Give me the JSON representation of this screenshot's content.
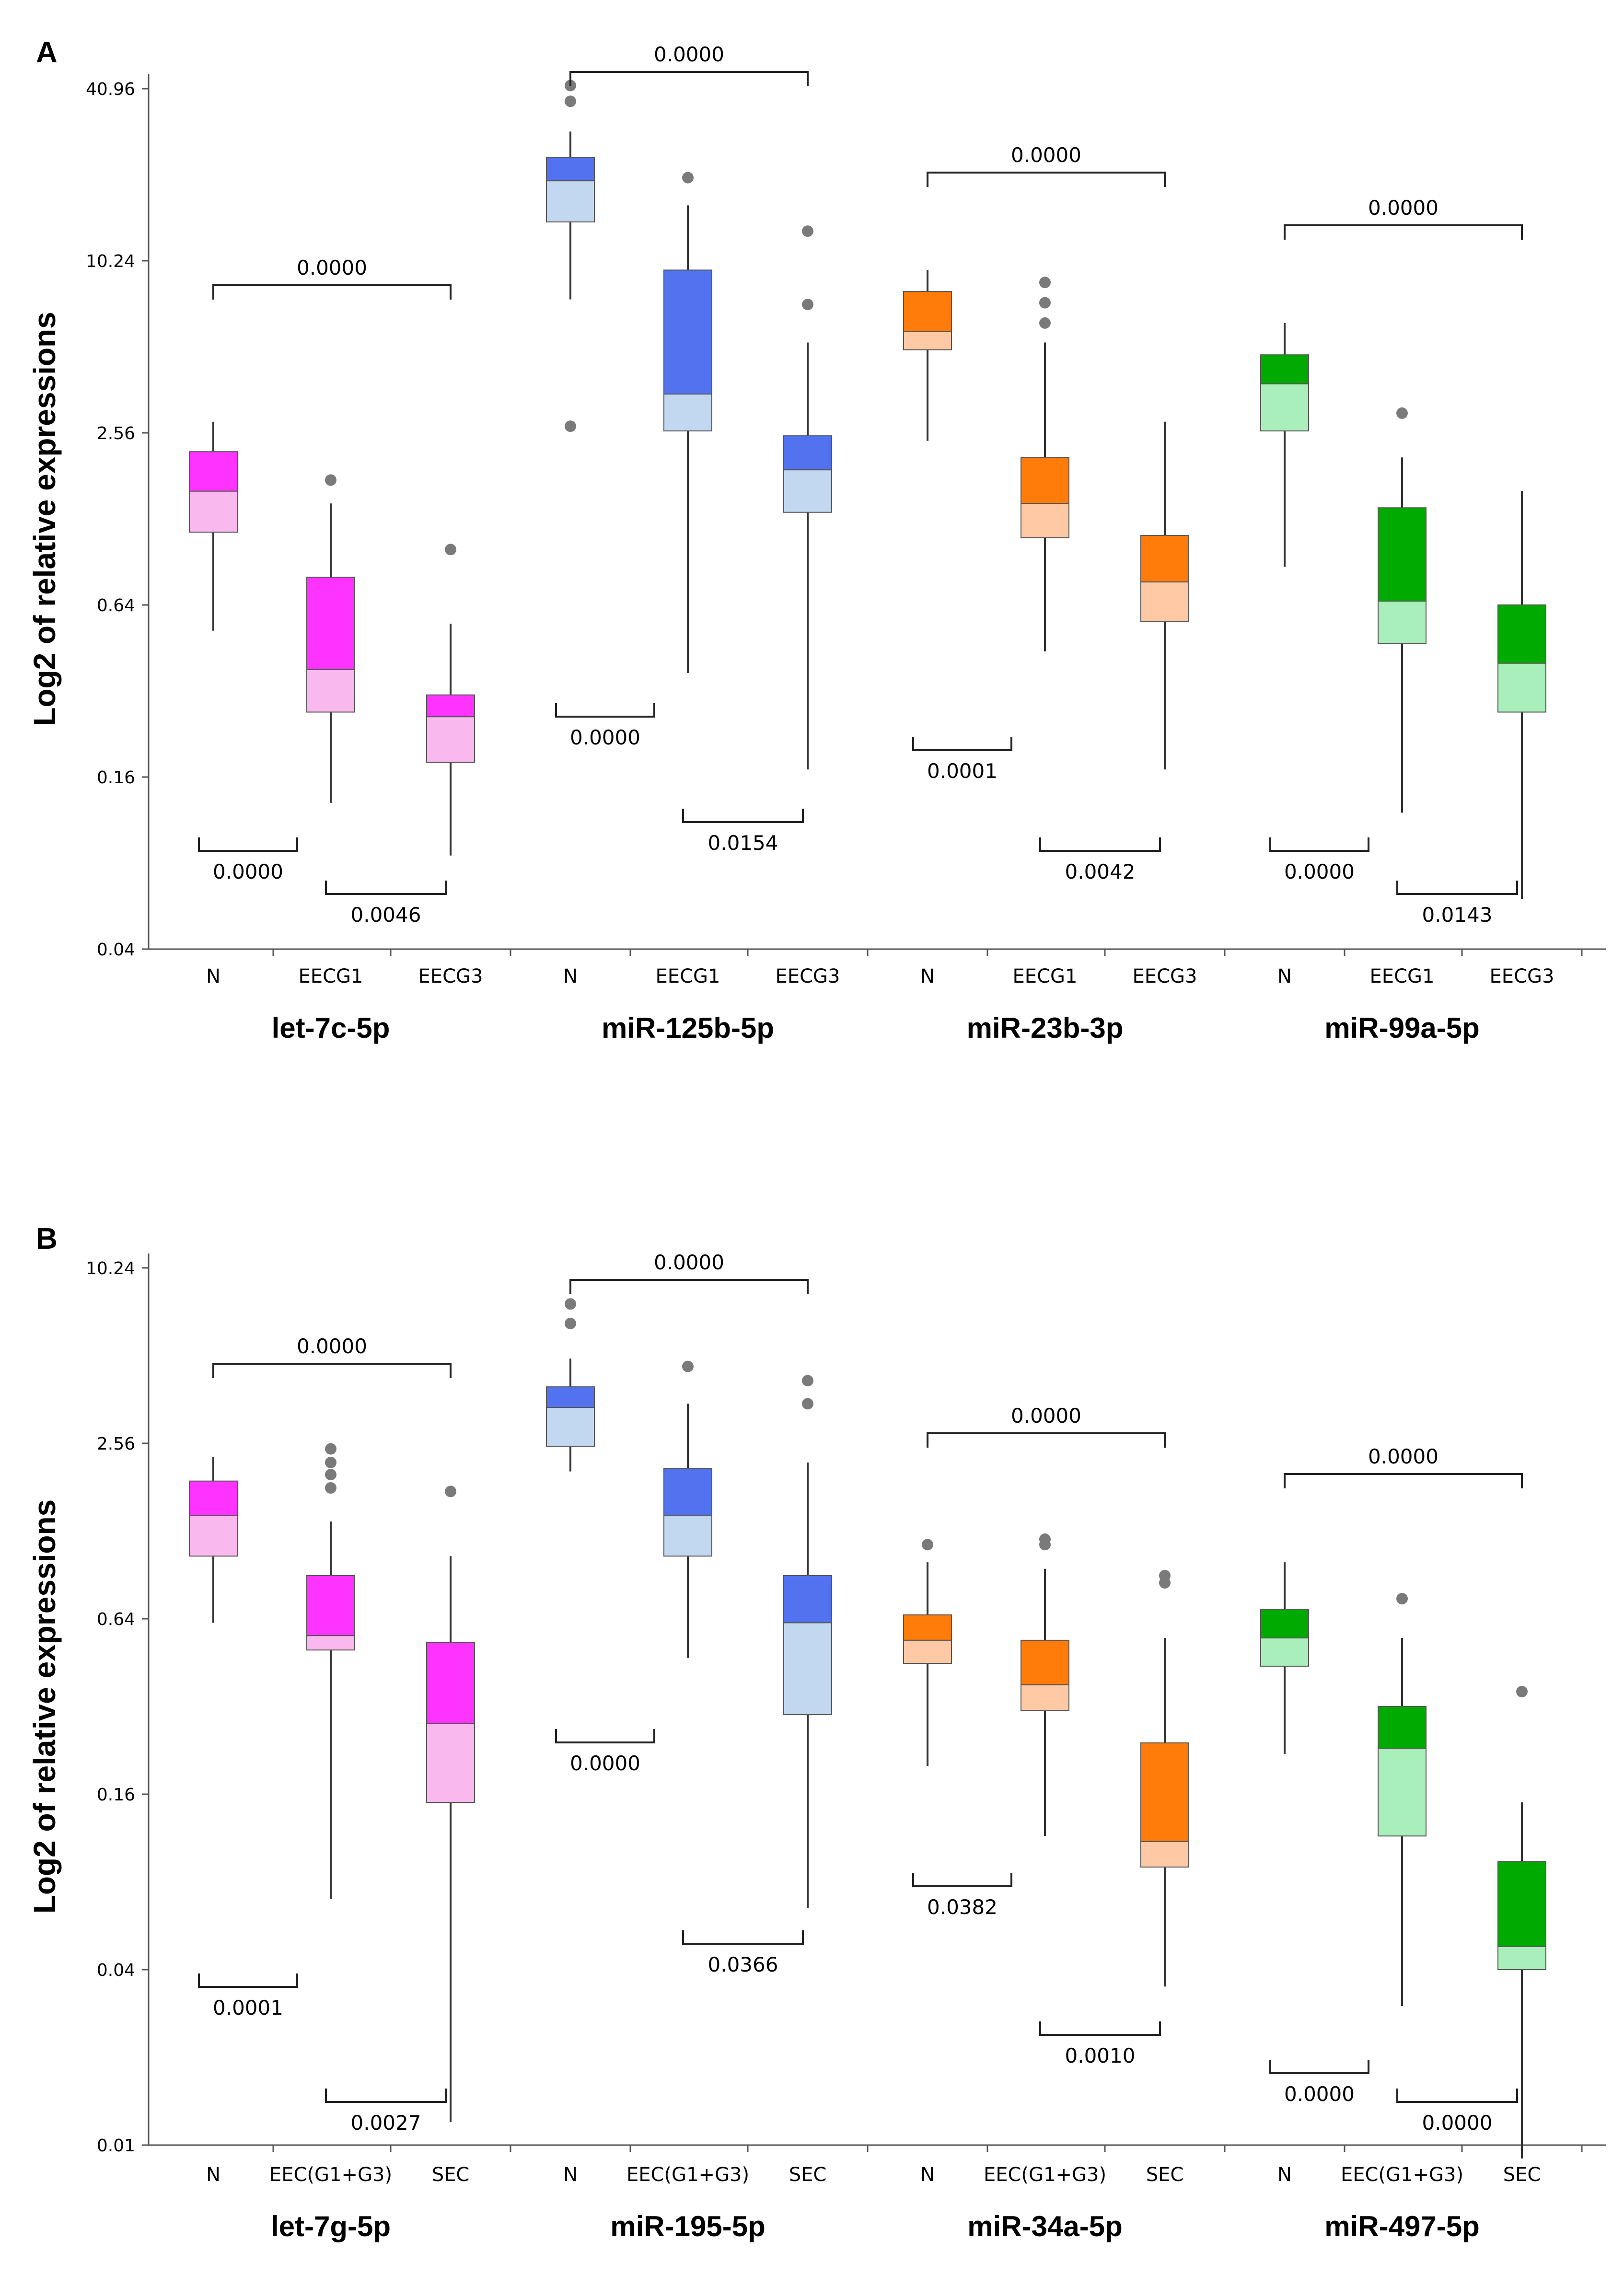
{
  "figure": {
    "panel_labels": [
      "A",
      "B"
    ]
  },
  "chart_data": [
    {
      "type": "box",
      "panel": "A",
      "ylabel": "Log2 of relative expressions",
      "yscale": "log2",
      "ylim": [
        0.04,
        40.96
      ],
      "yticks": [
        0.04,
        0.16,
        0.64,
        2.56,
        10.24,
        40.96
      ],
      "ytick_labels": [
        "0.04",
        "0.16",
        "0.64",
        "2.56",
        "10.24",
        "40.96"
      ],
      "groups": [
        {
          "name": "let-7c-5p",
          "color": "#ff33ff",
          "light": "#f9b9ee",
          "boxes": [
            {
              "category": "N",
              "q1": 1.15,
              "median": 1.6,
              "q3": 2.2,
              "whisker_low": 0.52,
              "whisker_high": 2.8,
              "outliers": []
            },
            {
              "category": "EECG1",
              "q1": 0.27,
              "median": 0.38,
              "q3": 0.8,
              "whisker_low": 0.13,
              "whisker_high": 1.45,
              "outliers": [
                1.75
              ]
            },
            {
              "category": "EECG3",
              "q1": 0.18,
              "median": 0.26,
              "q3": 0.31,
              "whisker_low": 0.085,
              "whisker_high": 0.55,
              "outliers": [
                1.0
              ]
            }
          ],
          "bracket_top": "0.0000",
          "bracket_low_1": "0.0000",
          "bracket_low_2": "0.0046"
        },
        {
          "name": "miR-125b-5p",
          "color": "#5272f0",
          "light": "#c1d8f0",
          "boxes": [
            {
              "category": "N",
              "q1": 14.0,
              "median": 19.5,
              "q3": 23.5,
              "whisker_low": 7.5,
              "whisker_high": 29.0,
              "outliers": [
                2.7,
                37.0,
                42.0
              ]
            },
            {
              "category": "EECG1",
              "q1": 2.6,
              "median": 3.5,
              "q3": 9.5,
              "whisker_low": 0.37,
              "whisker_high": 16.0,
              "outliers": [
                20.0
              ]
            },
            {
              "category": "EECG3",
              "q1": 1.35,
              "median": 1.9,
              "q3": 2.5,
              "whisker_low": 0.17,
              "whisker_high": 5.3,
              "outliers": [
                7.2,
                13.0
              ]
            }
          ],
          "bracket_top": "0.0000",
          "bracket_low_1": "0.0000",
          "bracket_low_2": "0.0154"
        },
        {
          "name": "miR-23b-3p",
          "color": "#ff7b0a",
          "light": "#ffc9a5",
          "boxes": [
            {
              "category": "N",
              "q1": 5.0,
              "median": 5.8,
              "q3": 8.0,
              "whisker_low": 2.4,
              "whisker_high": 9.5,
              "outliers": []
            },
            {
              "category": "EECG1",
              "q1": 1.1,
              "median": 1.45,
              "q3": 2.1,
              "whisker_low": 0.44,
              "whisker_high": 5.3,
              "outliers": [
                6.2,
                7.3,
                8.6
              ]
            },
            {
              "category": "EECG3",
              "q1": 0.56,
              "median": 0.77,
              "q3": 1.12,
              "whisker_low": 0.17,
              "whisker_high": 2.8,
              "outliers": []
            }
          ],
          "bracket_top": "0.0000",
          "bracket_low_1": "0.0001",
          "bracket_low_2": "0.0042"
        },
        {
          "name": "miR-99a-5p",
          "color": "#00aa00",
          "light": "#a9efbb",
          "boxes": [
            {
              "category": "N",
              "q1": 2.6,
              "median": 3.8,
              "q3": 4.8,
              "whisker_low": 0.87,
              "whisker_high": 6.2,
              "outliers": []
            },
            {
              "category": "EECG1",
              "q1": 0.47,
              "median": 0.66,
              "q3": 1.4,
              "whisker_low": 0.12,
              "whisker_high": 2.1,
              "outliers": [
                3.0
              ]
            },
            {
              "category": "EECG3",
              "q1": 0.27,
              "median": 0.4,
              "q3": 0.64,
              "whisker_low": 0.06,
              "whisker_high": 1.6,
              "outliers": []
            }
          ],
          "bracket_top": "0.0000",
          "bracket_low_1": "0.0000",
          "bracket_low_2": "0.0143"
        }
      ]
    },
    {
      "type": "box",
      "panel": "B",
      "ylabel": "Log2 of relative expressions",
      "yscale": "log2",
      "ylim": [
        0.01,
        10.24
      ],
      "yticks": [
        0.01,
        0.04,
        0.16,
        0.64,
        2.56,
        10.24
      ],
      "ytick_labels": [
        "0.01",
        "0.04",
        "0.16",
        "0.64",
        "2.56",
        "10.24"
      ],
      "groups": [
        {
          "name": "let-7g-5p",
          "color": "#ff33ff",
          "light": "#f9b9ee",
          "boxes": [
            {
              "category": "N",
              "q1": 1.05,
              "median": 1.45,
              "q3": 1.9,
              "whisker_low": 0.62,
              "whisker_high": 2.3,
              "outliers": []
            },
            {
              "category": "EEC(G1+G3)",
              "q1": 0.5,
              "median": 0.56,
              "q3": 0.9,
              "whisker_low": 0.07,
              "whisker_high": 1.38,
              "outliers": [
                1.8,
                2.0,
                2.2,
                2.45
              ]
            },
            {
              "category": "SEC",
              "q1": 0.15,
              "median": 0.28,
              "q3": 0.53,
              "whisker_low": 0.012,
              "whisker_high": 1.05,
              "outliers": [
                1.75
              ]
            }
          ],
          "bracket_top": "0.0000",
          "bracket_low_1": "0.0001",
          "bracket_low_2": "0.0027"
        },
        {
          "name": "miR-195-5p",
          "color": "#5272f0",
          "light": "#c1d8f0",
          "boxes": [
            {
              "category": "N",
              "q1": 2.5,
              "median": 3.4,
              "q3": 4.0,
              "whisker_low": 2.05,
              "whisker_high": 5.0,
              "outliers": [
                6.6,
                7.7
              ]
            },
            {
              "category": "EEC(G1+G3)",
              "q1": 1.05,
              "median": 1.45,
              "q3": 2.1,
              "whisker_low": 0.47,
              "whisker_high": 3.5,
              "outliers": [
                4.7
              ]
            },
            {
              "category": "SEC",
              "q1": 0.3,
              "median": 0.62,
              "q3": 0.9,
              "whisker_low": 0.065,
              "whisker_high": 2.2,
              "outliers": [
                3.5,
                4.2
              ]
            }
          ],
          "bracket_top": "0.0000",
          "bracket_low_1": "0.0000",
          "bracket_low_2": "0.0366"
        },
        {
          "name": "miR-34a-5p",
          "color": "#ff7b0a",
          "light": "#ffc9a5",
          "boxes": [
            {
              "category": "N",
              "q1": 0.45,
              "median": 0.54,
              "q3": 0.66,
              "whisker_low": 0.2,
              "whisker_high": 1.0,
              "outliers": [
                1.15
              ]
            },
            {
              "category": "EEC(G1+G3)",
              "q1": 0.31,
              "median": 0.38,
              "q3": 0.54,
              "whisker_low": 0.115,
              "whisker_high": 0.95,
              "outliers": [
                1.15,
                1.2
              ]
            },
            {
              "category": "SEC",
              "q1": 0.09,
              "median": 0.11,
              "q3": 0.24,
              "whisker_low": 0.035,
              "whisker_high": 0.55,
              "outliers": [
                0.85,
                0.9
              ]
            }
          ],
          "bracket_top": "0.0000",
          "bracket_low_1": "0.0382",
          "bracket_low_2": "0.0010"
        },
        {
          "name": "miR-497-5p",
          "color": "#00aa00",
          "light": "#a9efbb",
          "boxes": [
            {
              "category": "N",
              "q1": 0.44,
              "median": 0.55,
              "q3": 0.69,
              "whisker_low": 0.22,
              "whisker_high": 1.0,
              "outliers": []
            },
            {
              "category": "EEC(G1+G3)",
              "q1": 0.115,
              "median": 0.23,
              "q3": 0.32,
              "whisker_low": 0.03,
              "whisker_high": 0.55,
              "outliers": [
                0.75
              ]
            },
            {
              "category": "SEC",
              "q1": 0.04,
              "median": 0.048,
              "q3": 0.094,
              "whisker_low": 0.009,
              "whisker_high": 0.15,
              "outliers": [
                0.36
              ]
            }
          ],
          "bracket_top": "0.0000",
          "bracket_low_1": "0.0000",
          "bracket_low_2": "0.0000"
        }
      ]
    }
  ]
}
